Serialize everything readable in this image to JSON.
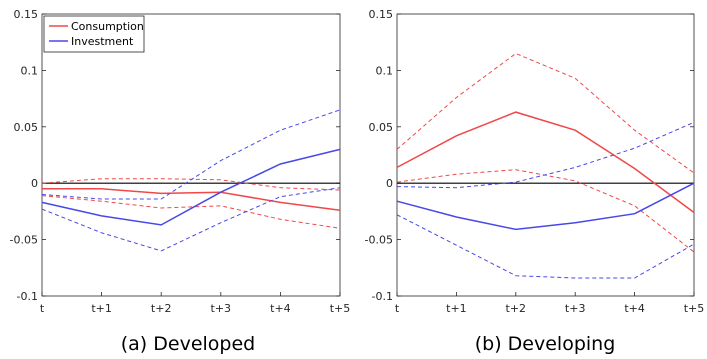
{
  "chart_data": [
    {
      "type": "line",
      "caption": "(a)  Developed",
      "x": [
        "t",
        "t+1",
        "t+2",
        "t+3",
        "t+4",
        "t+5"
      ],
      "ylim": [
        -0.1,
        0.15
      ],
      "yticks": [
        "0.15",
        "0.1",
        "0.05",
        "0",
        "-0.05",
        "-0.1"
      ],
      "ytick_values": [
        0.15,
        0.1,
        0.05,
        0,
        -0.05,
        -0.1
      ],
      "grid": false,
      "legend_position": "top-left",
      "zero_line": true,
      "series": [
        {
          "name": "Consumption",
          "color": "#f04848",
          "style": "solid",
          "values": [
            -0.005,
            -0.005,
            -0.009,
            -0.008,
            -0.017,
            -0.024
          ]
        },
        {
          "name": "",
          "color": "#f04848",
          "style": "dashed",
          "values": [
            0.0,
            0.004,
            0.004,
            0.003,
            -0.004,
            -0.006
          ]
        },
        {
          "name": "",
          "color": "#f04848",
          "style": "dashed",
          "values": [
            -0.011,
            -0.016,
            -0.022,
            -0.02,
            -0.032,
            -0.04
          ]
        },
        {
          "name": "Investment",
          "color": "#4848e8",
          "style": "solid",
          "values": [
            -0.017,
            -0.029,
            -0.037,
            -0.008,
            0.017,
            0.03
          ]
        },
        {
          "name": "",
          "color": "#4848e8",
          "style": "dashed",
          "values": [
            -0.01,
            -0.014,
            -0.014,
            0.02,
            0.047,
            0.065
          ]
        },
        {
          "name": "",
          "color": "#4848e8",
          "style": "dashed",
          "values": [
            -0.023,
            -0.044,
            -0.06,
            -0.035,
            -0.012,
            -0.004
          ]
        }
      ]
    },
    {
      "type": "line",
      "caption": "(b)  Developing",
      "x": [
        "t",
        "t+1",
        "t+2",
        "t+3",
        "t+4",
        "t+5"
      ],
      "ylim": [
        -0.1,
        0.15
      ],
      "yticks": [
        "0.15",
        "0.1",
        "0.05",
        "0",
        "-0.05",
        "-0.1"
      ],
      "ytick_values": [
        0.15,
        0.1,
        0.05,
        0,
        -0.05,
        -0.1
      ],
      "grid": false,
      "zero_line": true,
      "series": [
        {
          "name": "Consumption",
          "color": "#f04848",
          "style": "solid",
          "values": [
            0.014,
            0.042,
            0.063,
            0.047,
            0.013,
            -0.026
          ]
        },
        {
          "name": "",
          "color": "#f04848",
          "style": "dashed",
          "values": [
            0.03,
            0.076,
            0.115,
            0.093,
            0.047,
            0.009
          ]
        },
        {
          "name": "",
          "color": "#f04848",
          "style": "dashed",
          "values": [
            0.001,
            0.008,
            0.012,
            0.002,
            -0.02,
            -0.061
          ]
        },
        {
          "name": "Investment",
          "color": "#4848e8",
          "style": "solid",
          "values": [
            -0.016,
            -0.03,
            -0.041,
            -0.035,
            -0.027,
            0.0
          ]
        },
        {
          "name": "",
          "color": "#4848e8",
          "style": "dashed",
          "values": [
            -0.003,
            -0.004,
            0.001,
            0.014,
            0.031,
            0.054
          ]
        },
        {
          "name": "",
          "color": "#4848e8",
          "style": "dashed",
          "values": [
            -0.028,
            -0.055,
            -0.082,
            -0.084,
            -0.084,
            -0.054
          ]
        }
      ]
    }
  ]
}
